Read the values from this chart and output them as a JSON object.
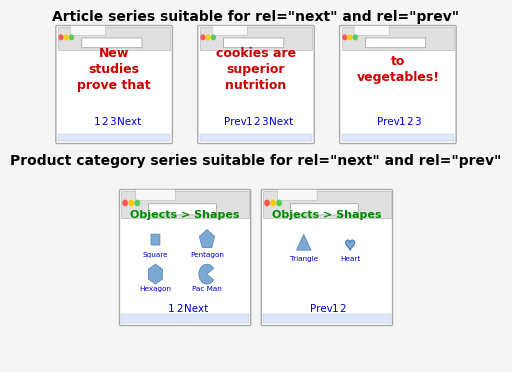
{
  "title1": "Article series suitable for rel=\"next\" and rel=\"prev\"",
  "title2": "Product category series suitable for rel=\"next\" and rel=\"prev\"",
  "bg_color": "#f5f5f5",
  "red_text": "#cc0000",
  "blue_link": "#0000cc",
  "green_text": "#008800",
  "shape_color": "#6699cc",
  "article_pages": [
    {
      "content": "New\nstudies\nprove that",
      "nav": "1 2 3 Next"
    },
    {
      "content": "cookies are\nsuperior\nnutrition",
      "nav": "Prev 1 2 3 Next"
    },
    {
      "content": "to\nvegetables!",
      "nav": "Prev 1 2 3"
    }
  ],
  "product_pages": [
    {
      "title": "Objects > Shapes",
      "shapes": [
        "square",
        "pentagon",
        "hexagon",
        "pacman"
      ],
      "labels": [
        "Square",
        "Pentagon",
        "Hexagon",
        "Pac Man"
      ],
      "nav": "1 2 Next"
    },
    {
      "title": "Objects > Shapes",
      "shapes": [
        "triangle",
        "heart"
      ],
      "labels": [
        "Triangle",
        "Heart"
      ],
      "nav": "Prev 1 2"
    }
  ]
}
